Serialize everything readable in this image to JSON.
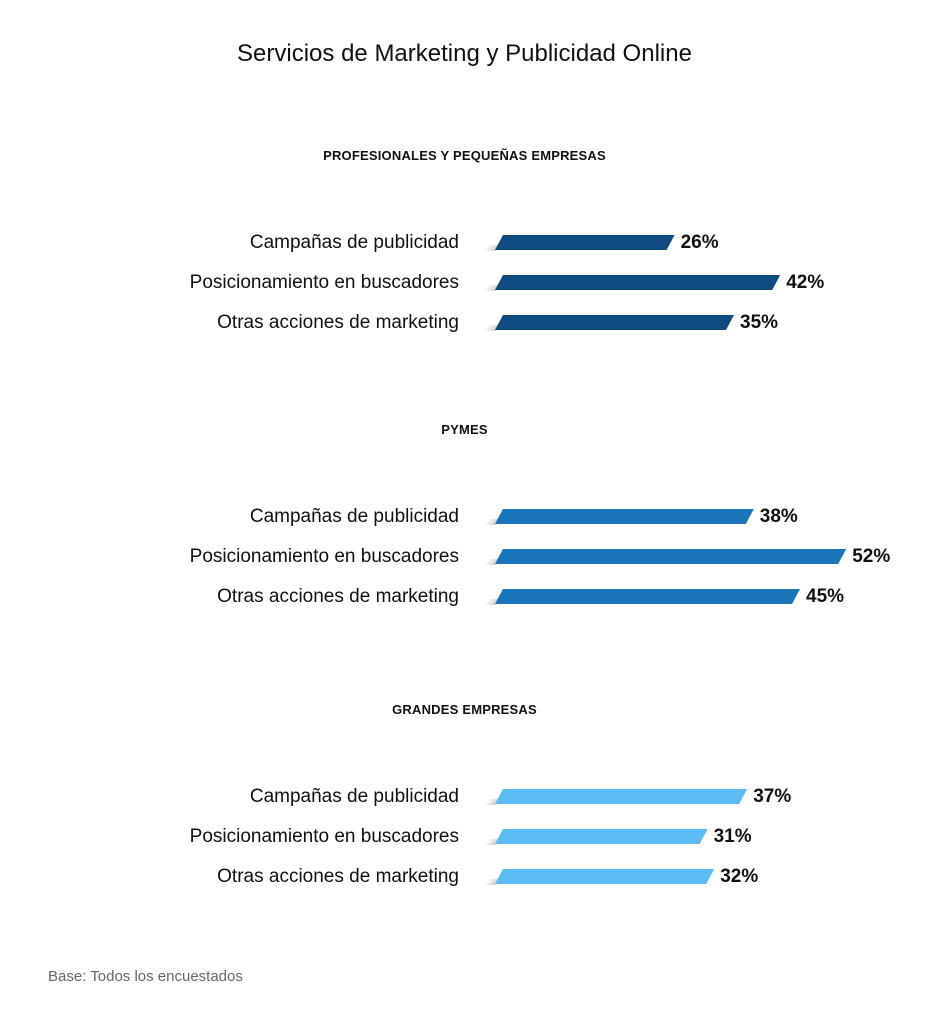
{
  "title": "Servicios de Marketing y Publicidad Online",
  "footer": "Base: Todos los encuestados",
  "chart_data": [
    {
      "type": "bar",
      "orientation": "horizontal",
      "title": "PROFESIONALES Y PEQUEÑAS EMPRESAS",
      "color": "#0f4a80",
      "categories": [
        "Campañas de publicidad",
        "Posicionamiento en buscadores",
        "Otras acciones de marketing"
      ],
      "values": [
        26,
        42,
        35
      ],
      "value_labels": [
        "26%",
        "42%",
        "35%"
      ]
    },
    {
      "type": "bar",
      "orientation": "horizontal",
      "title": "PYMES",
      "color": "#1b75bb",
      "categories": [
        "Campañas de publicidad",
        "Posicionamiento en buscadores",
        "Otras acciones de marketing"
      ],
      "values": [
        38,
        52,
        45
      ],
      "value_labels": [
        "38%",
        "52%",
        "45%"
      ]
    },
    {
      "type": "bar",
      "orientation": "horizontal",
      "title": "GRANDES EMPRESAS",
      "color": "#5bbcf6",
      "categories": [
        "Campañas de publicidad",
        "Posicionamiento en buscadores",
        "Otras acciones de marketing"
      ],
      "values": [
        37,
        31,
        32
      ],
      "value_labels": [
        "37%",
        "31%",
        "32%"
      ]
    }
  ]
}
